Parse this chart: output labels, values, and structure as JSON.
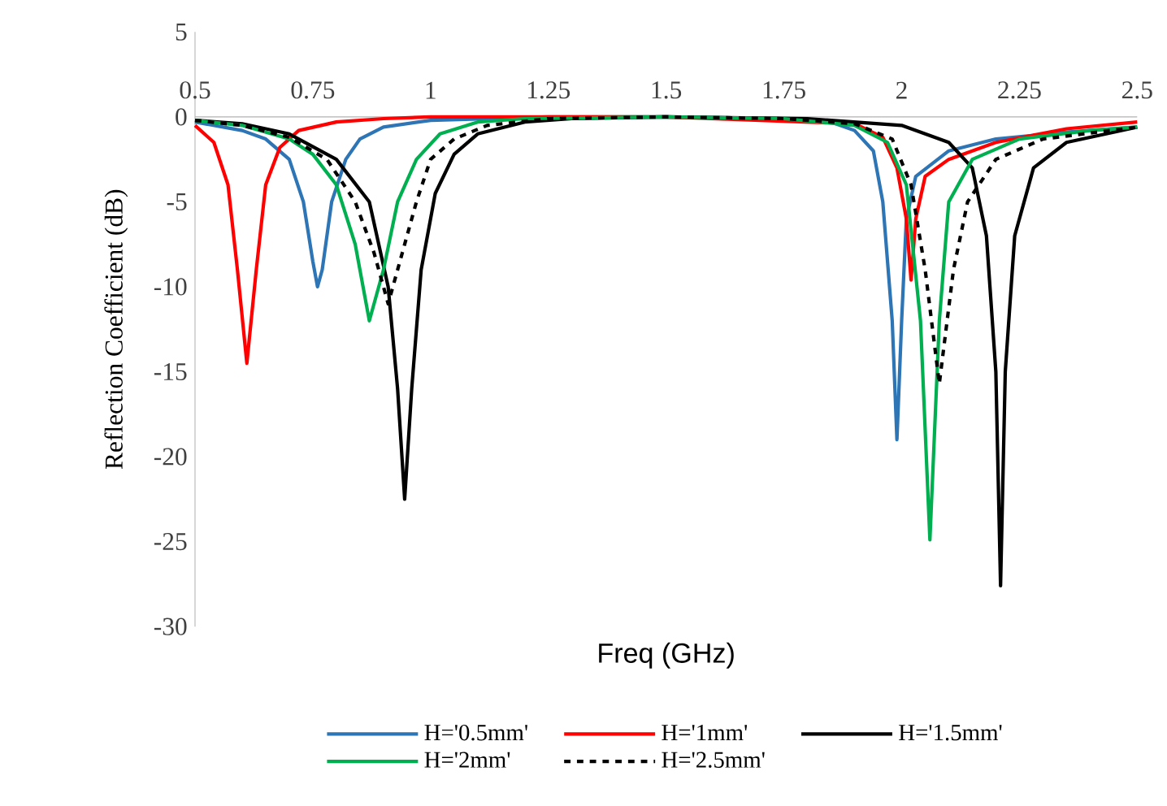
{
  "chart_data": {
    "type": "line",
    "xlabel": "Freq (GHz)",
    "ylabel": "Reflection Coefficient (dB)",
    "xlim": [
      0.5,
      2.5
    ],
    "ylim": [
      -30,
      5
    ],
    "xticks": [
      0.5,
      0.75,
      1,
      1.25,
      1.5,
      1.75,
      2,
      2.25,
      2.5
    ],
    "yticks": [
      -30,
      -25,
      -20,
      -15,
      -10,
      -5,
      0,
      5
    ],
    "legend": "bottom",
    "marker": "none",
    "series": [
      {
        "name": "H='0.5mm'",
        "color": "#2e75b6",
        "x": [
          0.5,
          0.6,
          0.65,
          0.7,
          0.73,
          0.75,
          0.76,
          0.77,
          0.79,
          0.82,
          0.85,
          0.9,
          1.0,
          1.25,
          1.5,
          1.75,
          1.85,
          1.9,
          1.94,
          1.96,
          1.98,
          1.99,
          2.0,
          2.01,
          2.03,
          2.1,
          2.2,
          2.35,
          2.5
        ],
        "values": [
          -0.3,
          -0.8,
          -1.3,
          -2.5,
          -5,
          -8.5,
          -10,
          -9,
          -5,
          -2.5,
          -1.3,
          -0.6,
          -0.2,
          0,
          0,
          -0.1,
          -0.3,
          -0.8,
          -2,
          -5,
          -12,
          -19,
          -12,
          -6,
          -3.5,
          -2,
          -1.3,
          -0.9,
          -0.6
        ]
      },
      {
        "name": "H='1mm'",
        "color": "#ff0000",
        "x": [
          0.5,
          0.54,
          0.57,
          0.59,
          0.61,
          0.63,
          0.65,
          0.68,
          0.72,
          0.8,
          0.9,
          1.0,
          1.5,
          1.9,
          1.96,
          1.99,
          2.01,
          2.02,
          2.03,
          2.05,
          2.1,
          2.2,
          2.35,
          2.5
        ],
        "values": [
          -0.5,
          -1.5,
          -4,
          -9,
          -14.5,
          -9,
          -4,
          -1.8,
          -0.8,
          -0.3,
          -0.1,
          0,
          0,
          -0.4,
          -1.2,
          -3,
          -6,
          -9.6,
          -6,
          -3.5,
          -2.5,
          -1.5,
          -0.7,
          -0.3
        ]
      },
      {
        "name": "H='1.5mm'",
        "color": "#000000",
        "x": [
          0.5,
          0.6,
          0.7,
          0.8,
          0.87,
          0.91,
          0.93,
          0.945,
          0.96,
          0.98,
          1.01,
          1.05,
          1.1,
          1.2,
          1.3,
          1.5,
          1.8,
          2.0,
          2.1,
          2.15,
          2.18,
          2.2,
          2.21,
          2.22,
          2.24,
          2.28,
          2.35,
          2.5
        ],
        "values": [
          -0.2,
          -0.4,
          -1,
          -2.5,
          -5,
          -10,
          -16,
          -22.5,
          -16,
          -9,
          -4.5,
          -2.2,
          -1,
          -0.3,
          -0.1,
          0,
          -0.1,
          -0.5,
          -1.5,
          -3,
          -7,
          -15,
          -27.6,
          -15,
          -7,
          -3,
          -1.5,
          -0.6
        ]
      },
      {
        "name": "H='2mm'",
        "color": "#00b050",
        "x": [
          0.5,
          0.6,
          0.7,
          0.75,
          0.8,
          0.84,
          0.87,
          0.9,
          0.93,
          0.97,
          1.02,
          1.1,
          1.2,
          1.5,
          1.75,
          1.9,
          1.97,
          2.01,
          2.04,
          2.06,
          2.08,
          2.1,
          2.15,
          2.25,
          2.4,
          2.5
        ],
        "values": [
          -0.2,
          -0.5,
          -1.3,
          -2.2,
          -4,
          -7.5,
          -12,
          -9,
          -5,
          -2.5,
          -1,
          -0.3,
          -0.1,
          0,
          -0.1,
          -0.5,
          -1.5,
          -4,
          -12,
          -24.9,
          -12,
          -5,
          -2.5,
          -1.3,
          -0.8,
          -0.6
        ]
      },
      {
        "name": "H='2.5mm'",
        "color": "#000000",
        "line_style": "dashed",
        "x": [
          0.5,
          0.6,
          0.7,
          0.78,
          0.84,
          0.88,
          0.91,
          0.94,
          0.97,
          1.0,
          1.05,
          1.12,
          1.25,
          1.5,
          1.75,
          1.9,
          1.98,
          2.02,
          2.05,
          2.08,
          2.11,
          2.14,
          2.2,
          2.3,
          2.5
        ],
        "values": [
          -0.2,
          -0.5,
          -1.2,
          -2.5,
          -5,
          -8,
          -11,
          -8,
          -5,
          -2.5,
          -1.3,
          -0.5,
          -0.1,
          0,
          -0.1,
          -0.4,
          -1.3,
          -4,
          -9,
          -15.7,
          -9,
          -5,
          -2.5,
          -1.3,
          -0.6
        ]
      }
    ]
  }
}
